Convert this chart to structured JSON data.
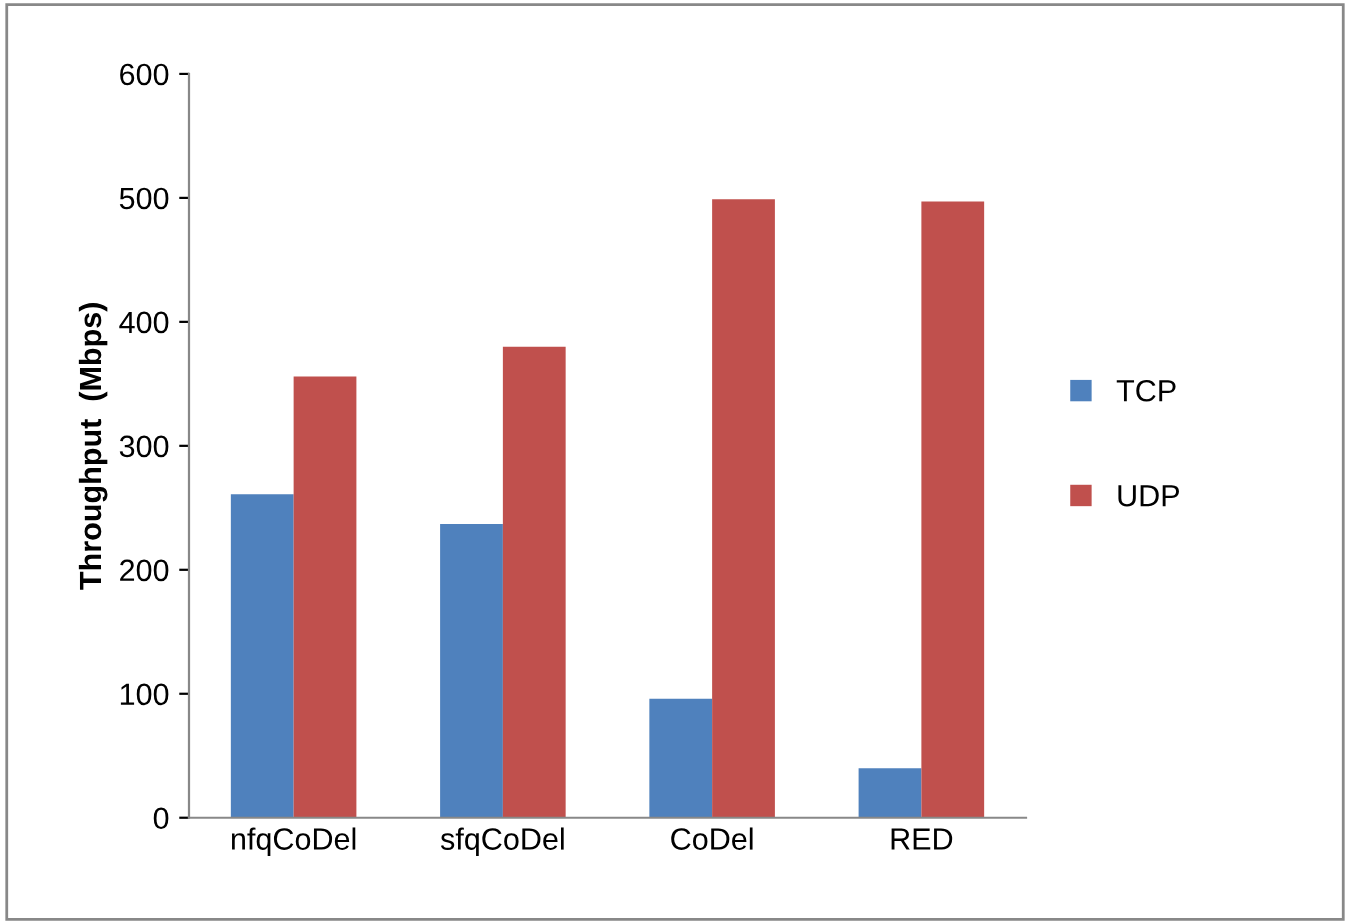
{
  "chart_data": {
    "type": "bar",
    "ylabel": "Throughput  (Mbps)",
    "categories": [
      "nfqCoDel",
      "sfqCoDel",
      "CoDel",
      "RED"
    ],
    "series": [
      {
        "name": "TCP",
        "color": "#4f81bd",
        "values": [
          261,
          237,
          96,
          40
        ]
      },
      {
        "name": "UDP",
        "color": "#c0504d",
        "values": [
          356,
          380,
          499,
          497
        ]
      }
    ],
    "ylim": [
      0,
      600
    ],
    "yticks": [
      0,
      100,
      200,
      300,
      400,
      500,
      600
    ],
    "grid": false,
    "legend": "right"
  }
}
